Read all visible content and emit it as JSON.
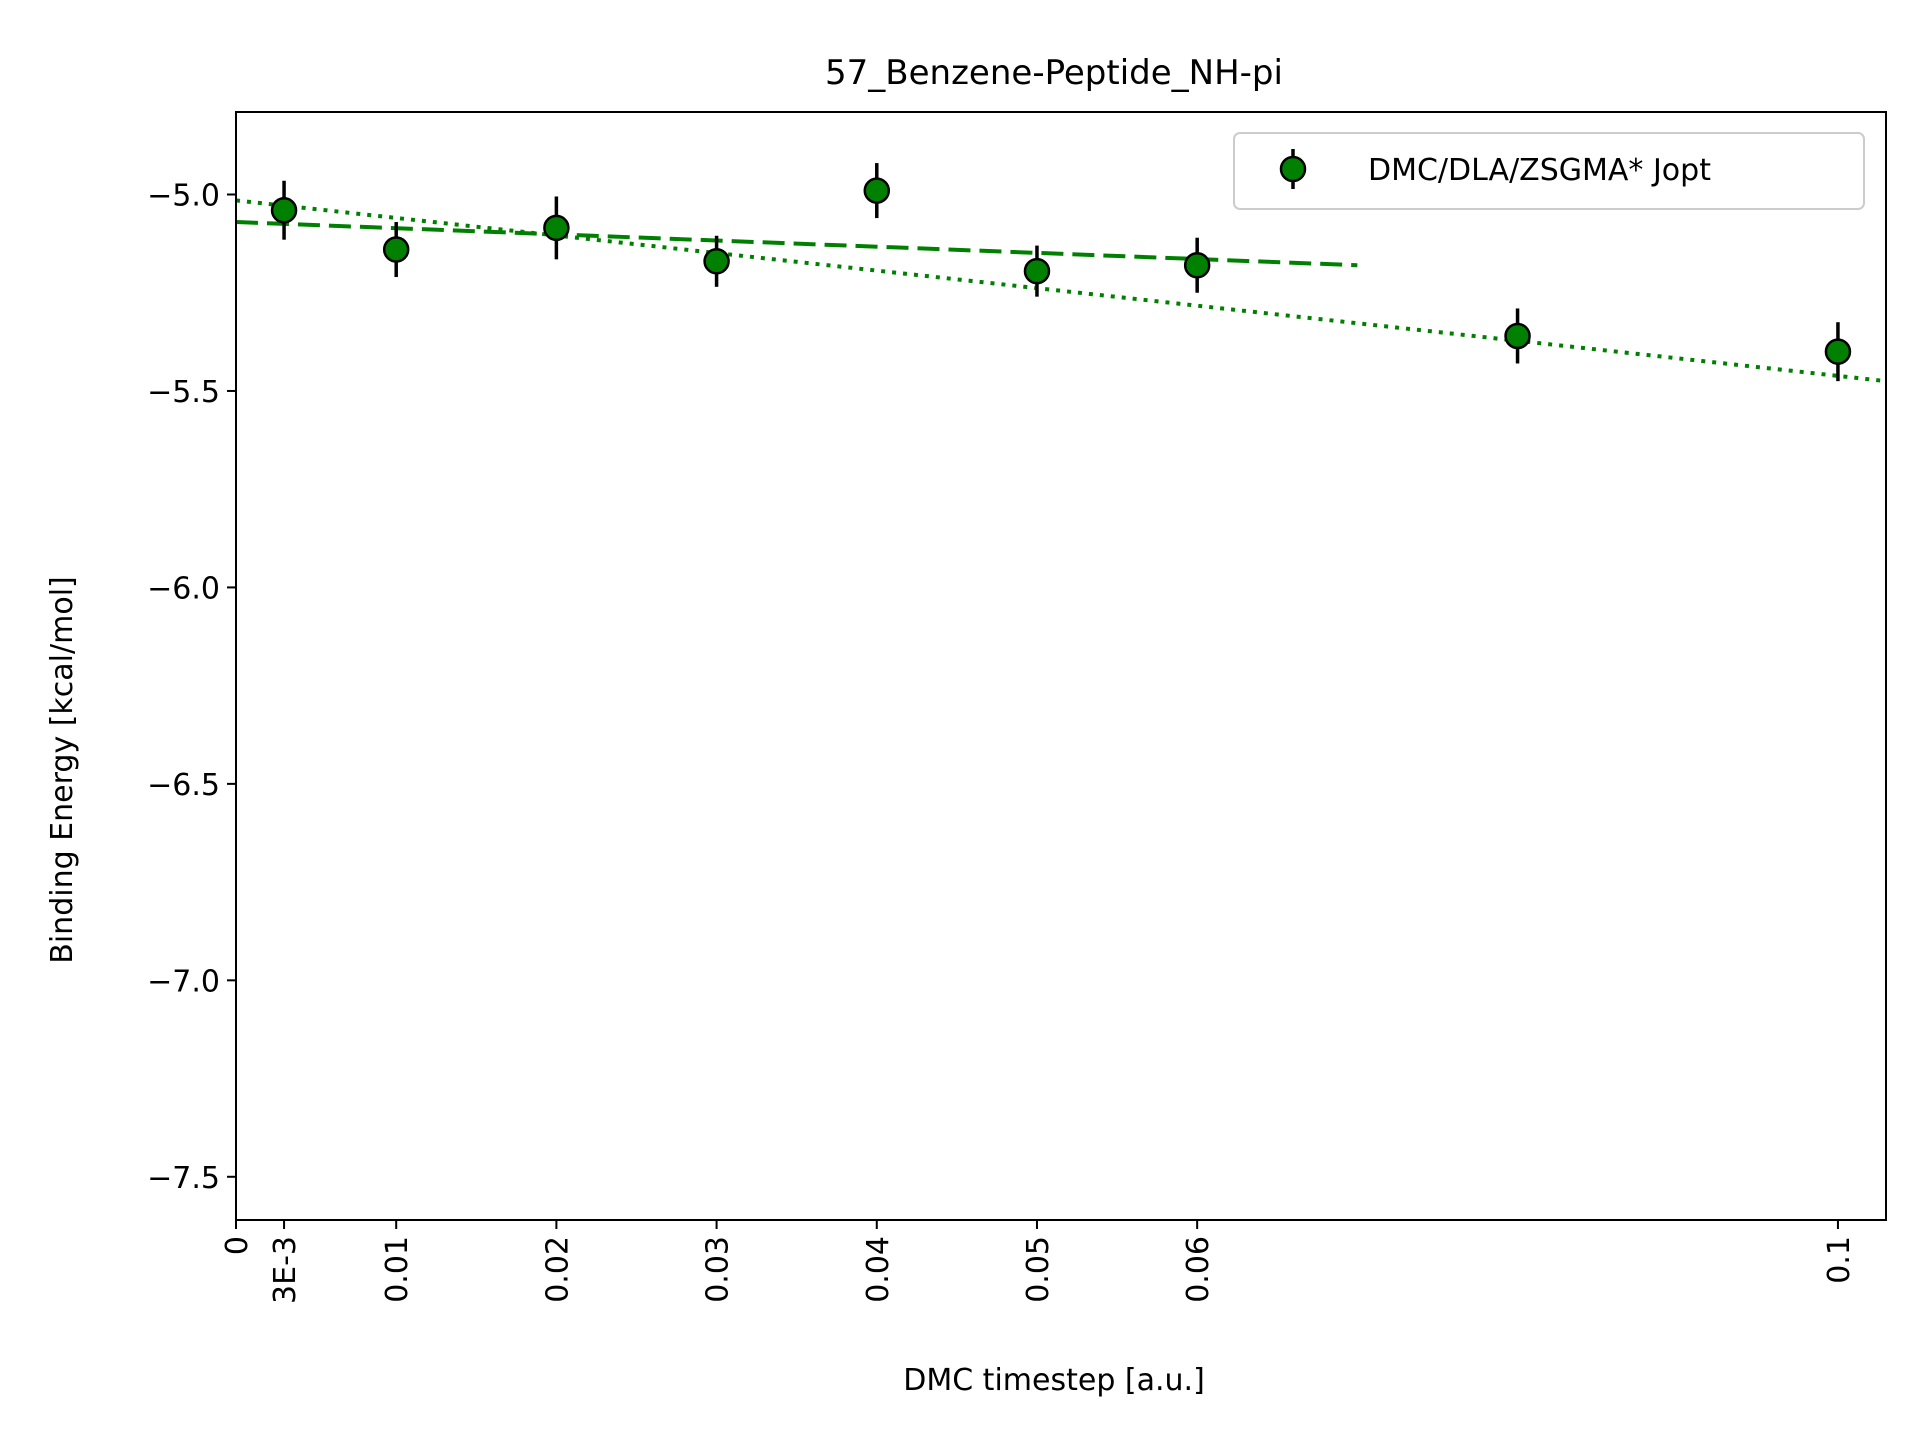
{
  "chart_data": {
    "type": "scatter",
    "title": "57_Benzene-Peptide_NH-pi",
    "xlabel": "DMC timestep [a.u.]",
    "ylabel": "Binding Energy [kcal/mol]",
    "xlim": [
      0,
      0.103
    ],
    "ylim": [
      -7.61,
      -4.79
    ],
    "x_ticks": [
      {
        "value": 0,
        "label": "0"
      },
      {
        "value": 0.003,
        "label": "3E-3"
      },
      {
        "value": 0.01,
        "label": "0.01"
      },
      {
        "value": 0.02,
        "label": "0.02"
      },
      {
        "value": 0.03,
        "label": "0.03"
      },
      {
        "value": 0.04,
        "label": "0.04"
      },
      {
        "value": 0.05,
        "label": "0.05"
      },
      {
        "value": 0.06,
        "label": "0.06"
      },
      {
        "value": 0.1,
        "label": "0.1"
      }
    ],
    "y_ticks": [
      {
        "value": -5.0,
        "label": "−5.0"
      },
      {
        "value": -5.5,
        "label": "−5.5"
      },
      {
        "value": -6.0,
        "label": "−6.0"
      },
      {
        "value": -6.5,
        "label": "−6.5"
      },
      {
        "value": -7.0,
        "label": "−7.0"
      },
      {
        "value": -7.5,
        "label": "−7.5"
      }
    ],
    "grid": false,
    "legend_position": "top-right",
    "series": [
      {
        "name": "DMC/DLA/ZSGMA* Jopt",
        "color": "#008000",
        "edge_color": "#000000",
        "points": [
          {
            "x": 0.003,
            "y": -5.04,
            "err": 0.075
          },
          {
            "x": 0.01,
            "y": -5.14,
            "err": 0.07
          },
          {
            "x": 0.02,
            "y": -5.085,
            "err": 0.08
          },
          {
            "x": 0.03,
            "y": -5.17,
            "err": 0.065
          },
          {
            "x": 0.04,
            "y": -4.99,
            "err": 0.07
          },
          {
            "x": 0.05,
            "y": -5.195,
            "err": 0.065
          },
          {
            "x": 0.06,
            "y": -5.18,
            "err": 0.07
          },
          {
            "x": 0.08,
            "y": -5.36,
            "err": 0.07
          },
          {
            "x": 0.1,
            "y": -5.4,
            "err": 0.075
          }
        ]
      }
    ],
    "fit_lines": [
      {
        "style": "dashed",
        "color": "#008000",
        "x": [
          0,
          0.07
        ],
        "y": [
          -5.07,
          -5.18
        ]
      },
      {
        "style": "dotted",
        "color": "#008000",
        "x": [
          0,
          0.103
        ],
        "y": [
          -5.015,
          -5.475
        ]
      }
    ]
  }
}
